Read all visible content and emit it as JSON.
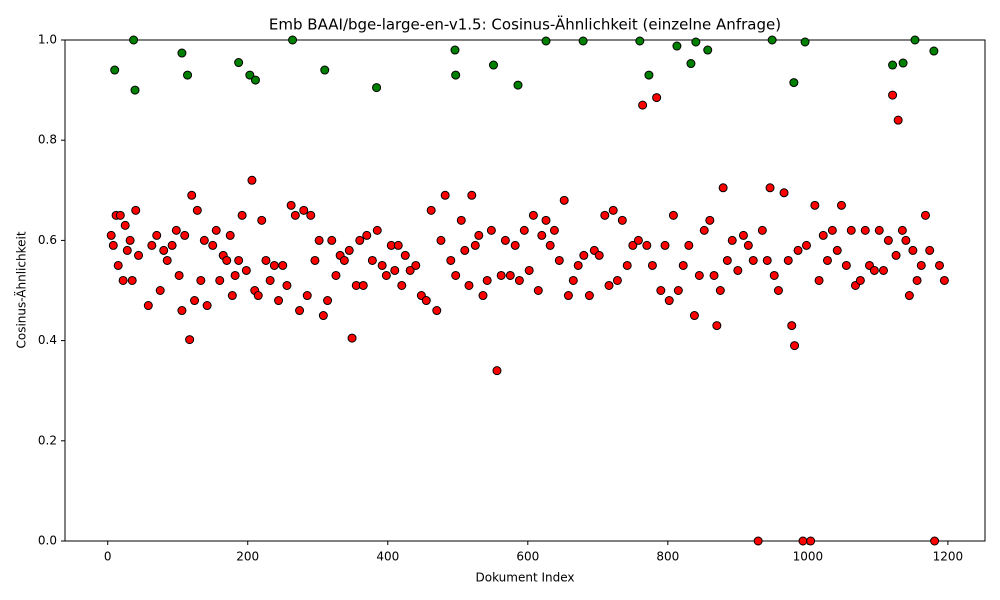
{
  "chart_data": {
    "type": "scatter",
    "title": "Emb BAAI/bge-large-en-v1.5: Cosinus-Ähnlichkeit (einzelne Anfrage)",
    "xlabel": "Dokument Index",
    "ylabel": "Cosinus-Ähnlichkeit",
    "xlim": [
      -61,
      1253
    ],
    "ylim": [
      0,
      1
    ],
    "xticks": [
      0,
      200,
      400,
      600,
      800,
      1000,
      1200
    ],
    "yticks": [
      {
        "value": 0,
        "label": "0.0"
      },
      0.2,
      0.4,
      0.6,
      0.8,
      {
        "value": 1,
        "label": "1.0"
      }
    ],
    "series": [
      {
        "color": "#ff0000",
        "x": [
          5,
          8,
          12,
          15,
          18,
          22,
          25,
          28,
          32,
          35,
          40,
          44,
          58,
          63,
          70,
          75,
          80,
          85,
          92,
          98,
          102,
          106,
          110,
          117,
          120,
          124,
          128,
          133,
          138,
          142,
          150,
          155,
          160,
          165,
          170,
          175,
          178,
          182,
          187,
          192,
          198,
          206,
          210,
          215,
          220,
          226,
          232,
          238,
          244,
          250,
          256,
          262,
          268,
          274,
          280,
          285,
          290,
          296,
          302,
          308,
          314,
          320,
          326,
          332,
          338,
          345,
          349,
          355,
          360,
          365,
          370,
          378,
          385,
          392,
          398,
          405,
          410,
          415,
          420,
          425,
          432,
          440,
          448,
          455,
          462,
          470,
          476,
          482,
          490,
          497,
          505,
          510,
          516,
          520,
          525,
          530,
          536,
          542,
          548,
          556,
          562,
          568,
          575,
          582,
          588,
          595,
          602,
          608,
          615,
          620,
          626,
          632,
          638,
          645,
          652,
          658,
          665,
          672,
          680,
          688,
          695,
          702,
          710,
          716,
          722,
          728,
          735,
          742,
          750,
          758,
          764,
          770,
          778,
          784,
          790,
          796,
          802,
          808,
          815,
          822,
          830,
          838,
          845,
          852,
          860,
          866,
          870,
          875,
          879,
          885,
          892,
          900,
          908,
          915,
          922,
          929,
          935,
          942,
          946,
          952,
          958,
          966,
          972,
          977,
          981,
          986,
          993,
          998,
          1004,
          1010,
          1016,
          1022,
          1028,
          1035,
          1042,
          1048,
          1055,
          1062,
          1068,
          1075,
          1082,
          1088,
          1095,
          1102,
          1108,
          1115,
          1121,
          1126,
          1129,
          1135,
          1140,
          1145,
          1150,
          1156,
          1162,
          1168,
          1174,
          1181,
          1188,
          1195
        ],
        "values": [
          0.61,
          0.59,
          0.65,
          0.55,
          0.65,
          0.52,
          0.63,
          0.58,
          0.6,
          0.52,
          0.66,
          0.57,
          0.47,
          0.59,
          0.61,
          0.5,
          0.58,
          0.56,
          0.59,
          0.62,
          0.53,
          0.46,
          0.61,
          0.402,
          0.69,
          0.48,
          0.66,
          0.52,
          0.6,
          0.47,
          0.59,
          0.62,
          0.52,
          0.57,
          0.56,
          0.61,
          0.49,
          0.53,
          0.56,
          0.65,
          0.54,
          0.72,
          0.5,
          0.49,
          0.64,
          0.56,
          0.52,
          0.55,
          0.48,
          0.55,
          0.51,
          0.67,
          0.65,
          0.46,
          0.66,
          0.49,
          0.65,
          0.56,
          0.6,
          0.45,
          0.48,
          0.6,
          0.53,
          0.57,
          0.56,
          0.58,
          0.405,
          0.51,
          0.6,
          0.51,
          0.61,
          0.56,
          0.62,
          0.55,
          0.53,
          0.59,
          0.54,
          0.59,
          0.51,
          0.57,
          0.54,
          0.55,
          0.49,
          0.48,
          0.66,
          0.46,
          0.6,
          0.69,
          0.56,
          0.53,
          0.64,
          0.58,
          0.51,
          0.69,
          0.59,
          0.61,
          0.49,
          0.52,
          0.62,
          0.34,
          0.53,
          0.6,
          0.53,
          0.59,
          0.52,
          0.62,
          0.54,
          0.65,
          0.5,
          0.61,
          0.64,
          0.59,
          0.62,
          0.56,
          0.68,
          0.49,
          0.52,
          0.55,
          0.57,
          0.49,
          0.58,
          0.57,
          0.65,
          0.51,
          0.66,
          0.52,
          0.64,
          0.55,
          0.59,
          0.6,
          0.87,
          0.59,
          0.55,
          0.885,
          0.5,
          0.59,
          0.48,
          0.65,
          0.5,
          0.55,
          0.59,
          0.45,
          0.53,
          0.62,
          0.64,
          0.53,
          0.43,
          0.5,
          0.705,
          0.56,
          0.6,
          0.54,
          0.61,
          0.59,
          0.56,
          0.0,
          0.62,
          0.56,
          0.705,
          0.53,
          0.5,
          0.695,
          0.56,
          0.43,
          0.39,
          0.58,
          0.0,
          0.59,
          0.0,
          0.67,
          0.52,
          0.61,
          0.56,
          0.62,
          0.58,
          0.67,
          0.55,
          0.62,
          0.51,
          0.52,
          0.62,
          0.55,
          0.54,
          0.62,
          0.54,
          0.6,
          0.89,
          0.57,
          0.84,
          0.62,
          0.6,
          0.49,
          0.58,
          0.52,
          0.55,
          0.65,
          0.58,
          0.0,
          0.55,
          0.52
        ]
      },
      {
        "color": "#008000",
        "x": [
          10,
          37,
          39,
          106,
          114,
          187,
          203,
          211,
          264,
          310,
          384,
          496,
          497,
          551,
          586,
          626,
          679,
          760,
          773,
          813,
          833,
          840,
          857,
          949,
          980,
          996,
          1121,
          1136,
          1153,
          1180
        ],
        "values": [
          0.94,
          1.0,
          0.9,
          0.974,
          0.93,
          0.955,
          0.93,
          0.92,
          1.0,
          0.94,
          0.905,
          0.98,
          0.93,
          0.95,
          0.91,
          0.998,
          0.998,
          0.998,
          0.93,
          0.988,
          0.953,
          0.996,
          0.98,
          1.0,
          0.915,
          0.996,
          0.95,
          0.954,
          1.0,
          0.978
        ]
      }
    ]
  }
}
